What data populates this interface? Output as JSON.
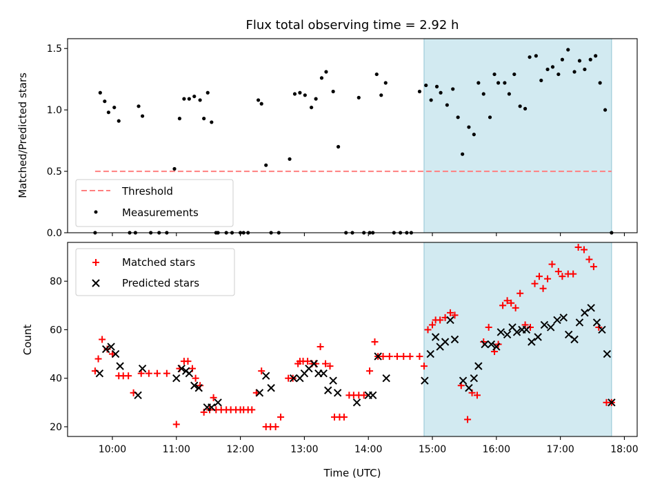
{
  "colors": {
    "band": "#add8e6",
    "threshold": "#ff7f7f",
    "matched": "#ff0000",
    "predicted": "#000000",
    "measure": "#000000"
  },
  "chart_data": [
    {
      "type": "scatter",
      "title": "Flux total observing time = 2.92 h",
      "ylabel": "Matched/Predicted stars",
      "xlabel": "",
      "xlim": [
        9.3,
        18.2
      ],
      "ylim": [
        0,
        1.58
      ],
      "yticks": [
        0.0,
        0.5,
        1.0,
        1.5
      ],
      "ytick_labels": [
        "0.0",
        "0.5",
        "1.0",
        "1.5"
      ],
      "shaded_band": [
        14.87,
        17.8
      ],
      "legend": [
        "Threshold",
        "Measurements"
      ],
      "legend_position": "lower-left",
      "threshold": {
        "name": "Threshold",
        "y": 0.5,
        "x": [
          9.73,
          17.8
        ]
      },
      "series": [
        {
          "name": "Measurements",
          "marker": "dot",
          "x": [
            9.73,
            9.81,
            9.88,
            9.94,
            10.03,
            10.1,
            10.27,
            10.36,
            10.41,
            10.47,
            10.6,
            10.73,
            10.85,
            10.97,
            11.05,
            11.12,
            11.2,
            11.28,
            11.37,
            11.43,
            11.49,
            11.55,
            11.62,
            11.65,
            11.78,
            11.87,
            12.0,
            12.05,
            12.12,
            12.28,
            12.33,
            12.4,
            12.48,
            12.6,
            12.77,
            12.85,
            12.93,
            13.01,
            13.11,
            13.18,
            13.27,
            13.34,
            13.45,
            13.53,
            13.65,
            13.75,
            13.85,
            13.93,
            14.02,
            14.07,
            14.13,
            14.2,
            14.27,
            14.4,
            14.5,
            14.6,
            14.67,
            14.8,
            14.9,
            14.98,
            15.07,
            15.13,
            15.23,
            15.32,
            15.4,
            15.47,
            15.57,
            15.65,
            15.72,
            15.8,
            15.9,
            15.97,
            16.03,
            16.13,
            16.2,
            16.28,
            16.37,
            16.45,
            16.52,
            16.62,
            16.7,
            16.8,
            16.88,
            16.97,
            17.03,
            17.12,
            17.22,
            17.3,
            17.38,
            17.47,
            17.55,
            17.62,
            17.7,
            17.8
          ],
          "y": [
            0,
            1.14,
            1.07,
            0.98,
            1.02,
            0.91,
            0,
            0,
            1.03,
            0.95,
            0,
            0,
            0,
            0.52,
            0.93,
            1.09,
            1.09,
            1.11,
            1.08,
            0.93,
            1.14,
            0.9,
            0,
            0,
            0,
            0,
            0,
            0,
            0,
            1.08,
            1.05,
            0.55,
            0,
            0,
            0.6,
            1.13,
            1.14,
            1.12,
            1.02,
            1.09,
            1.26,
            1.31,
            1.15,
            0.7,
            0,
            0,
            1.1,
            0,
            0,
            0,
            1.29,
            1.12,
            1.22,
            0,
            0,
            0,
            0,
            1.15,
            1.2,
            1.08,
            1.19,
            1.14,
            1.04,
            1.17,
            0.94,
            0.64,
            0.86,
            0.8,
            1.22,
            1.13,
            0.94,
            1.29,
            1.22,
            1.22,
            1.13,
            1.29,
            1.03,
            1.01,
            1.43,
            1.44,
            1.24,
            1.33,
            1.35,
            1.29,
            1.41,
            1.49,
            1.31,
            1.4,
            1.33,
            1.41,
            1.44,
            1.22,
            1.0,
            0
          ]
        }
      ]
    },
    {
      "type": "scatter",
      "title": "",
      "ylabel": "Count",
      "xlabel": "Time (UTC)",
      "xlim": [
        9.3,
        18.2
      ],
      "ylim": [
        16,
        96
      ],
      "yticks": [
        20,
        40,
        60,
        80
      ],
      "ytick_labels": [
        "20",
        "40",
        "60",
        "80"
      ],
      "xticks": [
        10,
        11,
        12,
        13,
        14,
        15,
        16,
        17,
        18
      ],
      "xtick_labels": [
        "10:00",
        "11:00",
        "12:00",
        "13:00",
        "14:00",
        "15:00",
        "16:00",
        "17:00",
        "18:00"
      ],
      "shaded_band": [
        14.87,
        17.8
      ],
      "legend": [
        "Matched stars",
        "Predicted stars"
      ],
      "legend_position": "upper-left",
      "series": [
        {
          "name": "Matched stars",
          "marker": "plus",
          "x": [
            9.73,
            9.78,
            9.84,
            9.92,
            10.0,
            10.1,
            10.17,
            10.25,
            10.33,
            10.45,
            10.57,
            10.7,
            10.85,
            11.0,
            11.05,
            11.12,
            11.18,
            11.25,
            11.3,
            11.37,
            11.43,
            11.52,
            11.58,
            11.62,
            11.7,
            11.78,
            11.85,
            11.93,
            12.0,
            12.05,
            12.12,
            12.18,
            12.25,
            12.33,
            12.4,
            12.47,
            12.55,
            12.63,
            12.75,
            12.82,
            12.9,
            12.93,
            12.98,
            13.05,
            13.12,
            13.18,
            13.25,
            13.33,
            13.4,
            13.47,
            13.55,
            13.62,
            13.7,
            13.77,
            13.85,
            13.93,
            14.02,
            14.1,
            14.15,
            14.23,
            14.33,
            14.45,
            14.55,
            14.65,
            14.8,
            14.87,
            14.93,
            15.0,
            15.05,
            15.12,
            15.2,
            15.28,
            15.35,
            15.45,
            15.55,
            15.62,
            15.7,
            15.8,
            15.88,
            15.97,
            16.03,
            16.1,
            16.17,
            16.23,
            16.3,
            16.37,
            16.45,
            16.53,
            16.6,
            16.67,
            16.73,
            16.8,
            16.87,
            16.97,
            17.03,
            17.12,
            17.2,
            17.28,
            17.37,
            17.45,
            17.52,
            17.6,
            17.72,
            17.8
          ],
          "y": [
            43,
            48,
            56,
            52,
            50,
            41,
            41,
            41,
            34,
            42,
            42,
            42,
            42,
            21,
            44,
            47,
            47,
            44,
            40,
            37,
            26,
            27,
            32,
            27,
            27,
            27,
            27,
            27,
            27,
            27,
            27,
            27,
            34,
            43,
            20,
            20,
            20,
            24,
            40,
            40,
            46,
            47,
            47,
            47,
            46,
            46,
            53,
            46,
            45,
            24,
            24,
            24,
            33,
            33,
            33,
            33,
            43,
            55,
            49,
            49,
            49,
            49,
            49,
            49,
            49,
            45,
            60,
            62,
            64,
            64,
            65,
            67,
            66,
            37,
            23,
            34,
            33,
            55,
            61,
            51,
            54,
            70,
            72,
            71,
            69,
            75,
            62,
            61,
            79,
            82,
            77,
            81,
            87,
            84,
            82,
            83,
            83,
            94,
            93,
            89,
            86,
            61,
            30,
            30
          ]
        },
        {
          "name": "Predicted stars",
          "marker": "x",
          "x": [
            9.8,
            9.9,
            9.98,
            10.05,
            10.12,
            10.4,
            10.47,
            11.0,
            11.08,
            11.15,
            11.2,
            11.28,
            11.35,
            11.48,
            11.55,
            11.65,
            12.3,
            12.4,
            12.48,
            12.83,
            12.93,
            13.0,
            13.07,
            13.15,
            13.22,
            13.3,
            13.37,
            13.45,
            13.52,
            13.82,
            14.0,
            14.07,
            14.15,
            14.28,
            14.88,
            14.97,
            15.05,
            15.12,
            15.2,
            15.28,
            15.35,
            15.48,
            15.57,
            15.65,
            15.72,
            15.82,
            15.92,
            16.0,
            16.07,
            16.17,
            16.25,
            16.32,
            16.4,
            16.47,
            16.55,
            16.65,
            16.75,
            16.85,
            16.95,
            17.05,
            17.13,
            17.22,
            17.3,
            17.38,
            17.48,
            17.57,
            17.65,
            17.73,
            17.8
          ],
          "y": [
            42,
            52,
            53,
            50,
            45,
            33,
            44,
            40,
            44,
            43,
            42,
            37,
            36,
            28,
            28,
            30,
            34,
            41,
            36,
            40,
            40,
            42,
            44,
            46,
            42,
            42,
            35,
            39,
            34,
            30,
            33,
            33,
            49,
            40,
            39,
            50,
            57,
            53,
            55,
            64,
            56,
            39,
            36,
            40,
            45,
            54,
            54,
            53,
            59,
            58,
            61,
            59,
            60,
            60,
            55,
            57,
            62,
            61,
            64,
            65,
            58,
            56,
            63,
            67,
            69,
            63,
            60,
            50,
            30
          ]
        }
      ]
    }
  ]
}
